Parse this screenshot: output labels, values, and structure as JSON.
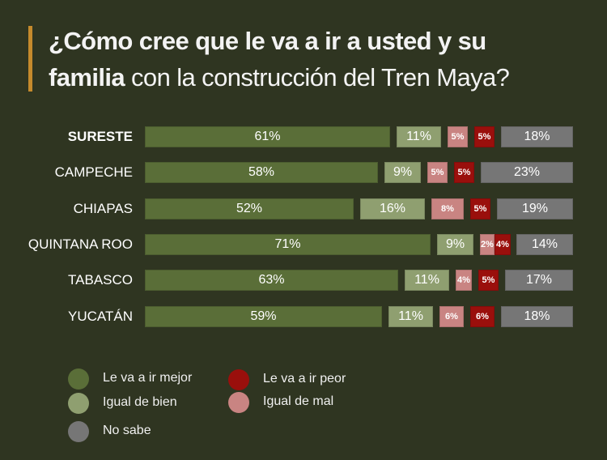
{
  "chart_data": {
    "type": "bar",
    "orientation": "horizontal-stacked-100",
    "title_bold": "¿Cómo cree que le va a ir a usted y su familia",
    "title_light": "con la construcción del Tren Maya?",
    "title_line1": "¿Cómo cree que le va a ir a usted y su",
    "title_line2_bold": "familia",
    "title_line2_light": " con la construcción del Tren Maya?",
    "categories": [
      "SURESTE",
      "CAMPECHE",
      "CHIAPAS",
      "QUINTANA ROO",
      "TABASCO",
      "YUCATÁN"
    ],
    "highlight_category": "SURESTE",
    "series": [
      {
        "name": "Le va a ir mejor",
        "color": "#5a6e38",
        "values": [
          61,
          58,
          52,
          71,
          63,
          59
        ]
      },
      {
        "name": "Igual de bien",
        "color": "#8f9f70",
        "values": [
          11,
          9,
          16,
          9,
          11,
          11
        ]
      },
      {
        "name": "Igual de mal",
        "color": "#c98482",
        "values": [
          5,
          5,
          8,
          2,
          4,
          6
        ]
      },
      {
        "name": "Le va a ir peor",
        "color": "#9a0f0c",
        "values": [
          5,
          5,
          5,
          4,
          5,
          6
        ]
      },
      {
        "name": "No sabe",
        "color": "#767676",
        "values": [
          18,
          23,
          19,
          14,
          17,
          18
        ]
      }
    ],
    "unit": "%",
    "xlim": [
      0,
      100
    ],
    "legend": [
      {
        "label": "Le va a ir mejor",
        "color": "#5a6e38"
      },
      {
        "label": "Igual de bien",
        "color": "#8f9f70"
      },
      {
        "label": "No sabe",
        "color": "#767676"
      },
      {
        "label": "Le va a ir peor",
        "color": "#9a0f0c"
      },
      {
        "label": "Igual de mal",
        "color": "#c98482"
      }
    ],
    "legend_position": "bottom-left"
  },
  "colors": {
    "background": "#2f3521",
    "title_accent": "#c58a2c"
  }
}
